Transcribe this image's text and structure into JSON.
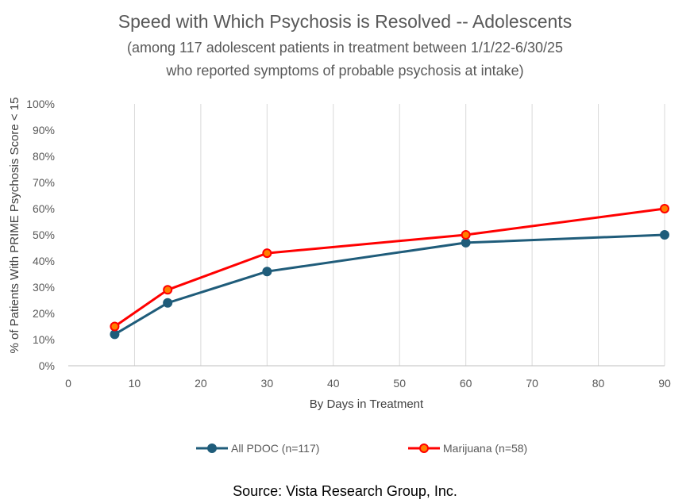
{
  "chart_data": {
    "type": "line",
    "title": "Speed with Which Psychosis is Resolved -- Adolescents",
    "subtitle_lines": [
      "(among 117 adolescent patients in treatment between 1/1/22-6/30/25",
      "who reported symptoms of probable psychosis at intake)"
    ],
    "xlabel": "By Days in Treatment",
    "ylabel": "% of Patients With PRIME Psychosis Score < 15",
    "xlim": [
      0,
      90
    ],
    "ylim": [
      0,
      100
    ],
    "x_ticks": [
      0,
      10,
      20,
      30,
      40,
      50,
      60,
      70,
      80,
      90
    ],
    "y_ticks": [
      0,
      10,
      20,
      30,
      40,
      50,
      60,
      70,
      80,
      90,
      100
    ],
    "y_tick_suffix": "%",
    "grid": "vertical",
    "legend_position": "bottom",
    "series": [
      {
        "name": "All PDOC (n=117)",
        "color": "#1F5C7A",
        "marker_fill": "#1F5C7A",
        "x": [
          7,
          15,
          30,
          60,
          90
        ],
        "y": [
          12,
          24,
          36,
          47,
          50
        ]
      },
      {
        "name": "Marijuana (n=58)",
        "color": "#FF0000",
        "marker_fill": "#FF7F00",
        "x": [
          7,
          15,
          30,
          60,
          90
        ],
        "y": [
          15,
          29,
          43,
          50,
          60
        ]
      }
    ]
  },
  "footer": {
    "source": "Source:  Vista Research Group, Inc."
  }
}
